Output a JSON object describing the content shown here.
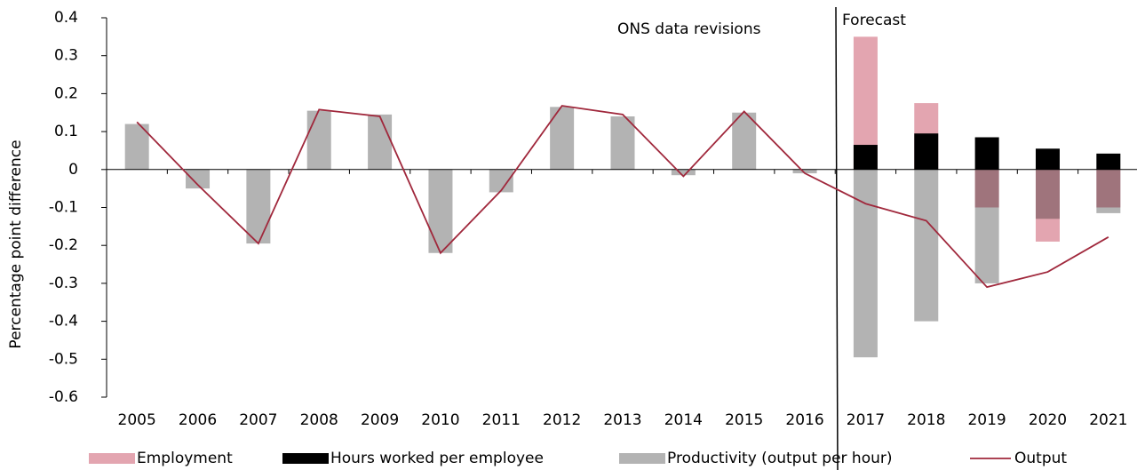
{
  "chart_data": {
    "type": "bar",
    "y_label": "Percentage point difference",
    "annotations": [
      "ONS data revisions",
      "Forecast"
    ],
    "categories": [
      "2005",
      "2006",
      "2007",
      "2008",
      "2009",
      "2010",
      "2011",
      "2012",
      "2013",
      "2014",
      "2015",
      "2016",
      "2017",
      "2018",
      "2019",
      "2020",
      "2021"
    ],
    "series": [
      {
        "name": "Employment",
        "color": "#e3a5b0",
        "values": [
          null,
          null,
          null,
          null,
          null,
          null,
          null,
          null,
          null,
          null,
          null,
          null,
          0.35,
          0.175,
          -0.1,
          -0.19,
          -0.1
        ]
      },
      {
        "name": "Hours worked per employee",
        "color": "#000000",
        "values": [
          null,
          null,
          null,
          null,
          null,
          null,
          null,
          null,
          null,
          null,
          null,
          null,
          0.065,
          0.095,
          0.085,
          0.055,
          0.042
        ]
      },
      {
        "name": "Productivity (output per hour)",
        "color": "#b3b3b3",
        "values": [
          0.12,
          -0.05,
          -0.195,
          0.155,
          0.145,
          -0.22,
          -0.06,
          0.165,
          0.14,
          -0.015,
          0.15,
          -0.01,
          -0.495,
          -0.4,
          -0.3,
          -0.13,
          -0.115
        ]
      },
      {
        "name": "Output",
        "type": "line",
        "color": "#a0283c",
        "values": [
          0.125,
          -0.04,
          -0.195,
          0.158,
          0.14,
          -0.22,
          -0.055,
          0.168,
          0.145,
          -0.018,
          0.153,
          -0.01,
          -0.09,
          -0.135,
          -0.31,
          -0.27,
          -0.178
        ]
      }
    ],
    "ylim": [
      -0.6,
      0.4
    ],
    "yticks": [
      -0.6,
      -0.5,
      -0.4,
      -0.3,
      -0.2,
      -0.1,
      0,
      0.1,
      0.2,
      0.3,
      0.4
    ]
  }
}
